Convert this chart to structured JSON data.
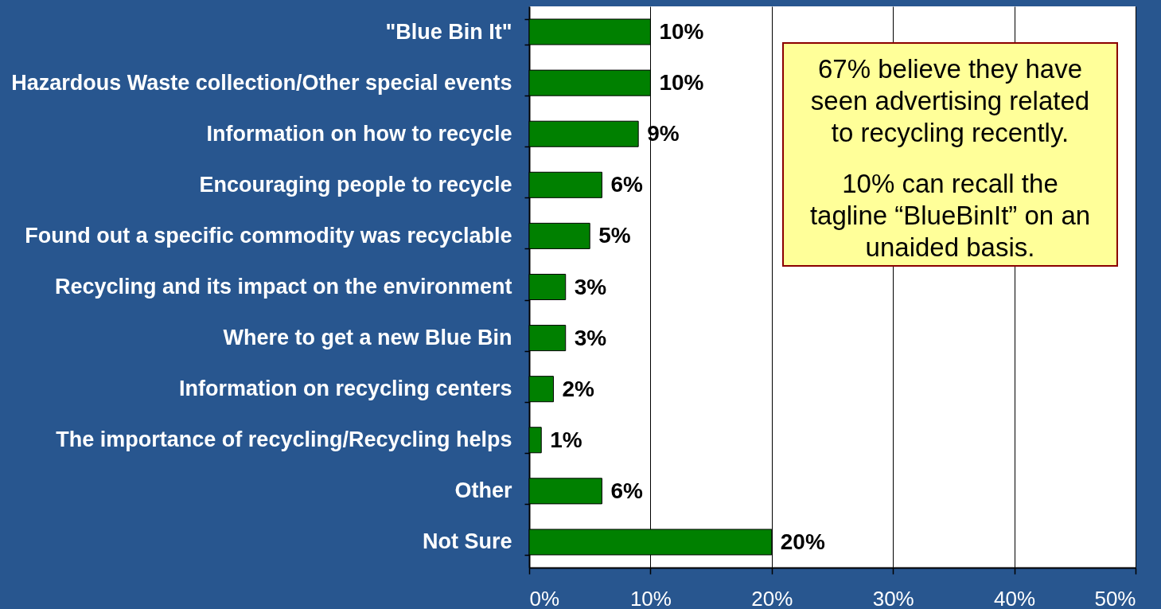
{
  "chart_data": {
    "type": "bar",
    "orientation": "horizontal",
    "categories": [
      "\"Blue Bin It\"",
      "Hazardous Waste collection/Other special events",
      "Information on how to recycle",
      "Encouraging people to recycle",
      "Found out a specific commodity was recyclable",
      "Recycling and its impact on the environment",
      "Where to get a new Blue Bin",
      "Information on recycling centers",
      "The importance of recycling/Recycling helps",
      "Other",
      "Not Sure"
    ],
    "values": [
      10,
      10,
      9,
      6,
      5,
      3,
      3,
      2,
      1,
      6,
      20
    ],
    "value_labels": [
      "10%",
      "10%",
      "9%",
      "6%",
      "5%",
      "3%",
      "3%",
      "2%",
      "1%",
      "6%",
      "20%"
    ],
    "color": "#008000",
    "xlim": [
      0,
      50
    ],
    "xticks": [
      {
        "value": 0,
        "label": "0%"
      },
      {
        "value": 10,
        "label": "10%"
      },
      {
        "value": 20,
        "label": "20%"
      },
      {
        "value": 30,
        "label": "30%"
      },
      {
        "value": 40,
        "label": "40%"
      },
      {
        "value": 50,
        "label": "50%"
      }
    ],
    "grid": "x",
    "annotations": [
      "67% believe they have seen advertising related to recycling recently.",
      "10% can recall the tagline “BlueBinIt” on an unaided basis."
    ]
  }
}
